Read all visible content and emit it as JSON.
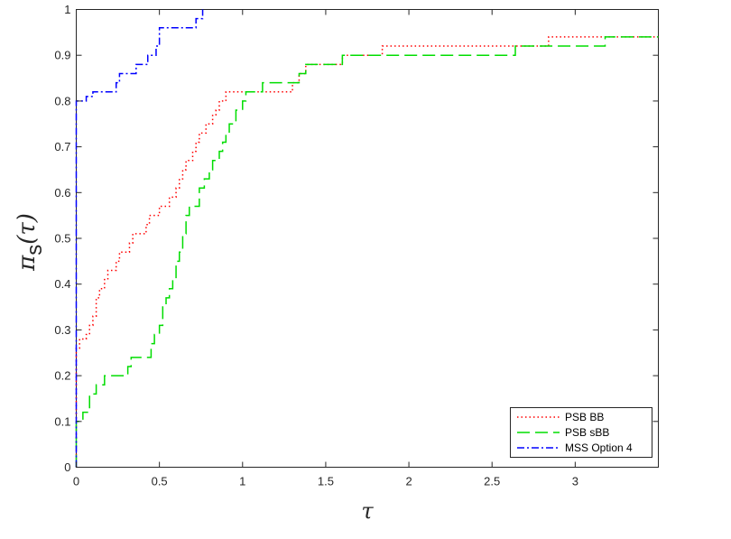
{
  "chart_data": {
    "type": "line",
    "title": "",
    "xlabel": "τ",
    "ylabel_main": "π",
    "ylabel_sub": "s",
    "ylabel_arg": "(τ)",
    "xlim": [
      0,
      3.5
    ],
    "ylim": [
      0,
      1
    ],
    "xticks": [
      0,
      0.5,
      1,
      1.5,
      2,
      2.5,
      3
    ],
    "xtick_labels": [
      "0",
      "0.5",
      "1",
      "1.5",
      "2",
      "2.5",
      "3"
    ],
    "yticks": [
      0,
      0.1,
      0.2,
      0.3,
      0.4,
      0.5,
      0.6,
      0.7,
      0.8,
      0.9,
      1
    ],
    "ytick_labels": [
      "0",
      "0.1",
      "0.2",
      "0.3",
      "0.4",
      "0.5",
      "0.6",
      "0.7",
      "0.8",
      "0.9",
      "1"
    ],
    "grid": false,
    "legend_position": "bottom-right",
    "series": [
      {
        "name": "PSB BB",
        "color": "#ff0000",
        "style": "dotted",
        "steps": [
          [
            0,
            0.26
          ],
          [
            0.02,
            0.28
          ],
          [
            0.06,
            0.29
          ],
          [
            0.08,
            0.31
          ],
          [
            0.1,
            0.33
          ],
          [
            0.12,
            0.37
          ],
          [
            0.14,
            0.39
          ],
          [
            0.17,
            0.41
          ],
          [
            0.19,
            0.43
          ],
          [
            0.24,
            0.45
          ],
          [
            0.26,
            0.47
          ],
          [
            0.32,
            0.49
          ],
          [
            0.34,
            0.51
          ],
          [
            0.42,
            0.53
          ],
          [
            0.44,
            0.55
          ],
          [
            0.5,
            0.57
          ],
          [
            0.56,
            0.59
          ],
          [
            0.6,
            0.61
          ],
          [
            0.62,
            0.63
          ],
          [
            0.64,
            0.65
          ],
          [
            0.66,
            0.67
          ],
          [
            0.7,
            0.69
          ],
          [
            0.72,
            0.71
          ],
          [
            0.74,
            0.73
          ],
          [
            0.78,
            0.75
          ],
          [
            0.82,
            0.77
          ],
          [
            0.84,
            0.78
          ],
          [
            0.86,
            0.8
          ],
          [
            0.9,
            0.82
          ],
          [
            1.3,
            0.84
          ],
          [
            1.34,
            0.86
          ],
          [
            1.38,
            0.88
          ],
          [
            1.6,
            0.9
          ],
          [
            1.84,
            0.92
          ],
          [
            2.84,
            0.94
          ],
          [
            3.5,
            0.94
          ]
        ]
      },
      {
        "name": "PSB sBB",
        "color": "#00dd00",
        "style": "dashed",
        "steps": [
          [
            0,
            0.1
          ],
          [
            0.04,
            0.12
          ],
          [
            0.08,
            0.16
          ],
          [
            0.12,
            0.18
          ],
          [
            0.17,
            0.2
          ],
          [
            0.31,
            0.22
          ],
          [
            0.33,
            0.24
          ],
          [
            0.45,
            0.27
          ],
          [
            0.47,
            0.29
          ],
          [
            0.5,
            0.31
          ],
          [
            0.52,
            0.35
          ],
          [
            0.54,
            0.37
          ],
          [
            0.56,
            0.39
          ],
          [
            0.58,
            0.41
          ],
          [
            0.6,
            0.45
          ],
          [
            0.62,
            0.47
          ],
          [
            0.64,
            0.51
          ],
          [
            0.66,
            0.55
          ],
          [
            0.68,
            0.57
          ],
          [
            0.74,
            0.61
          ],
          [
            0.77,
            0.63
          ],
          [
            0.8,
            0.65
          ],
          [
            0.82,
            0.67
          ],
          [
            0.86,
            0.69
          ],
          [
            0.88,
            0.71
          ],
          [
            0.9,
            0.73
          ],
          [
            0.92,
            0.75
          ],
          [
            0.96,
            0.78
          ],
          [
            1.0,
            0.8
          ],
          [
            1.02,
            0.82
          ],
          [
            1.12,
            0.84
          ],
          [
            1.34,
            0.86
          ],
          [
            1.38,
            0.88
          ],
          [
            1.6,
            0.9
          ],
          [
            2.64,
            0.92
          ],
          [
            3.18,
            0.94
          ],
          [
            3.5,
            0.94
          ]
        ]
      },
      {
        "name": "MSS Option 4",
        "color": "#0000ff",
        "style": "dashdot",
        "steps": [
          [
            0,
            0.8
          ],
          [
            0.02,
            0.8
          ],
          [
            0.06,
            0.81
          ],
          [
            0.1,
            0.82
          ],
          [
            0.24,
            0.84
          ],
          [
            0.26,
            0.86
          ],
          [
            0.36,
            0.88
          ],
          [
            0.43,
            0.9
          ],
          [
            0.48,
            0.92
          ],
          [
            0.5,
            0.96
          ],
          [
            0.72,
            0.98
          ],
          [
            0.76,
            1.0
          ]
        ]
      }
    ]
  }
}
